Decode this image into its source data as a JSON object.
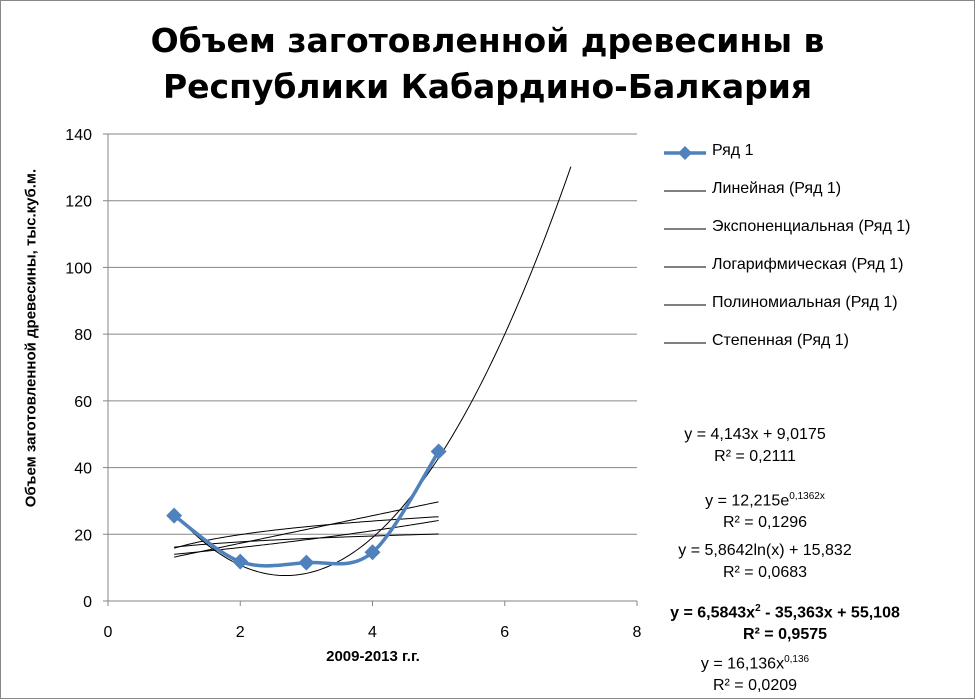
{
  "chart_data": {
    "type": "scatter",
    "title": [
      "Объем заготовленной древесины в",
      "Республики Кабардино-Балкария"
    ],
    "xlabel": "2009-2013 г.г.",
    "ylabel": "Объем заготовленной древесины, тыс.куб.м.",
    "xlim": [
      0,
      8
    ],
    "ylim": [
      0,
      140
    ],
    "x_ticks": [
      "0",
      "2",
      "4",
      "6",
      "8"
    ],
    "y_ticks": [
      "0",
      "20",
      "40",
      "60",
      "80",
      "100",
      "120",
      "140"
    ],
    "grid": "horizontal",
    "legend_position": "right",
    "series": [
      {
        "name": "Ряд 1",
        "x": [
          1,
          2,
          3,
          4,
          5
        ],
        "y": [
          25.6,
          11.8,
          11.5,
          14.6,
          44.8
        ],
        "color": "#4f81bd",
        "marker": "diamond",
        "smooth": true
      }
    ],
    "trendlines": [
      {
        "name": "Линейная (Ряд 1)",
        "type": "linear",
        "a": 4.143,
        "b": 9.0175,
        "x_range": [
          1,
          5
        ],
        "equation": "y = 4,143x + 9,0175",
        "r2": "R² = 0,2111",
        "bold": false
      },
      {
        "name": "Экспоненциальная (Ряд 1)",
        "type": "exponential",
        "a": 12.215,
        "b": 0.1362,
        "x_range": [
          1,
          5
        ],
        "equation": "y = 12,215e",
        "equation_sup": "0,1362x",
        "r2": "R² = 0,1296",
        "bold": false
      },
      {
        "name": "Логарифмическая (Ряд 1)",
        "type": "logarithmic",
        "a": 5.8642,
        "b": 15.832,
        "x_range": [
          1,
          5
        ],
        "equation": "y = 5,8642ln(x) + 15,832",
        "r2": "R² = 0,0683",
        "bold": false
      },
      {
        "name": "Полиномиальная (Ряд 1)",
        "type": "polynomial",
        "a": 6.5843,
        "b": -35.363,
        "c": 55.108,
        "x_range": [
          1,
          7
        ],
        "equation": "y = 6,5843x",
        "equation_sup": "2",
        "equation_rest": " - 35,363x + 55,108",
        "r2": "R² = 0,9575",
        "bold": true
      },
      {
        "name": "Степенная (Ряд 1)",
        "type": "power",
        "a": 16.136,
        "b": 0.136,
        "x_range": [
          1,
          5
        ],
        "equation": "y = 16,136x",
        "equation_sup": "0,136",
        "r2": "R² = 0,0209",
        "bold": false
      }
    ],
    "colors": {
      "series": "#4f81bd",
      "trend": "#000000",
      "grid": "#868686",
      "axis": "#868686"
    }
  }
}
